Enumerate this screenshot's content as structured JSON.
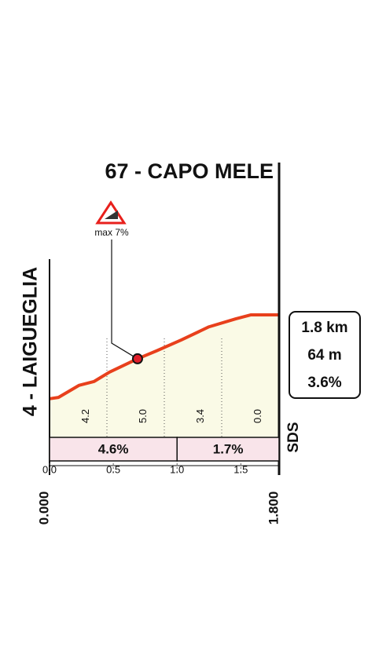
{
  "chart_data": {
    "type": "line",
    "title": "67 - CAPO MELE",
    "start_label": "4 - LAIGUEGLIA",
    "start_distance": "0.000",
    "end_distance": "1.800",
    "brand": "SDS",
    "x": [
      0,
      0.07,
      0.23,
      0.35,
      0.47,
      0.69,
      0.84,
      1.03,
      1.25,
      1.46,
      1.58,
      1.8
    ],
    "values": [
      4,
      5,
      14,
      17,
      24,
      34,
      40,
      48,
      58,
      64,
      67,
      67
    ],
    "color": "#e8401c",
    "fill": "#fafae6",
    "xlim": [
      0,
      1.8
    ],
    "ylim": [
      -25,
      100
    ],
    "xticks": [
      {
        "value": 0,
        "label": "0.0"
      },
      0.5,
      {
        "value": 1,
        "label": "1.0"
      },
      1.5
    ],
    "gradients": {
      "bins": [
        0,
        0.45,
        0.9,
        1.35,
        1.8
      ],
      "values": [
        4.2,
        5,
        3.4,
        0
      ],
      "value_labels": [
        "4.2",
        "5.0",
        "3.4",
        "0.0"
      ]
    },
    "bands": {
      "bins": [
        0,
        1,
        1.8
      ],
      "values": [
        4.6,
        1.7
      ],
      "value_labels": [
        "4.6%",
        "1.7%"
      ],
      "color": "#f9e4ea"
    },
    "max_marker": {
      "label": "max 7%",
      "x": 0.69,
      "y": 34
    },
    "end_box": [
      "1.8 km",
      "64 m",
      "3.6%"
    ]
  }
}
